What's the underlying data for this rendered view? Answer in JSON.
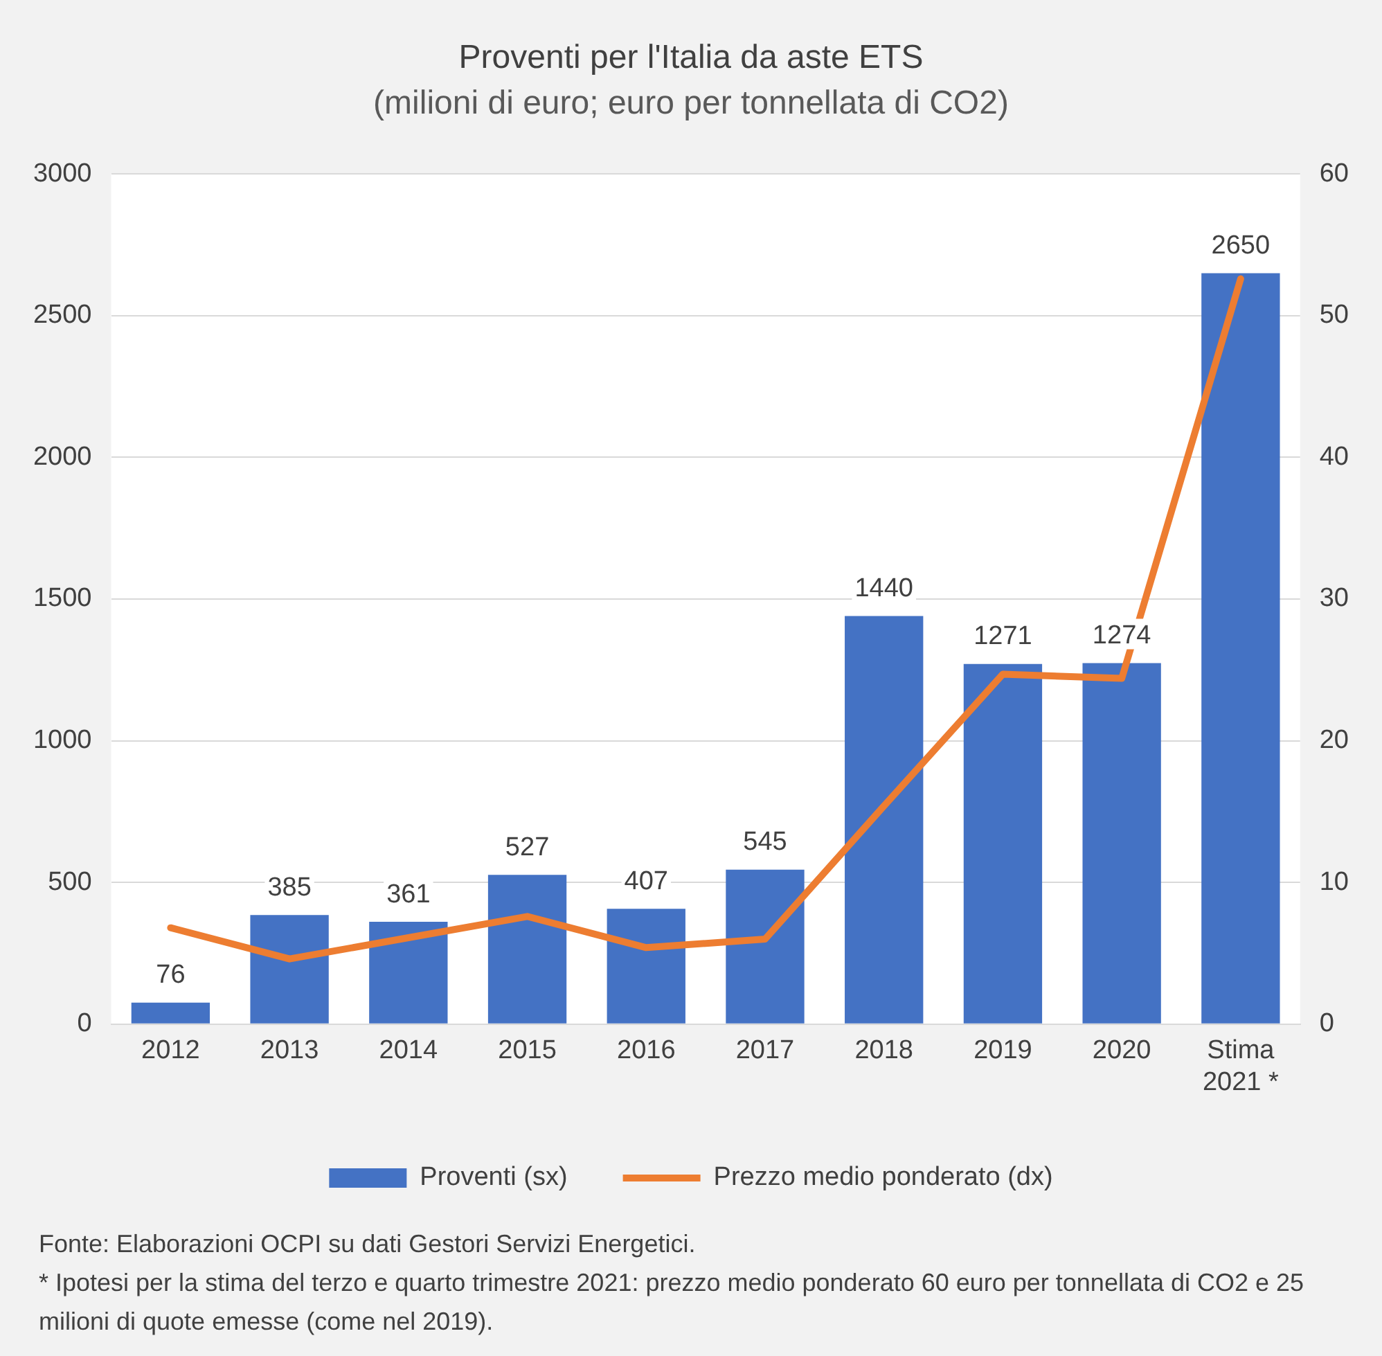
{
  "chart_data": {
    "type": "bar",
    "title": "Proventi per l'Italia da aste ETS",
    "subtitle": "(milioni di euro; euro per tonnellata di CO2)",
    "categories": [
      "2012",
      "2013",
      "2014",
      "2015",
      "2016",
      "2017",
      "2018",
      "2019",
      "2020",
      "Stima 2021 *"
    ],
    "series": [
      {
        "name": "Proventi (sx)",
        "color": "#4472c4",
        "values": [
          76,
          385,
          361,
          527,
          407,
          545,
          1440,
          1271,
          1274,
          2650
        ],
        "value_labels": [
          "76",
          "385",
          "361",
          "527",
          "407",
          "545",
          "1440",
          "1271",
          "1274",
          "2650"
        ]
      },
      {
        "name": "Prezzo medio ponderato (dx)",
        "type": "line",
        "axis": "y2",
        "color": "#ed7d31",
        "values": [
          6.8,
          4.6,
          6.1,
          7.6,
          5.4,
          6.0,
          15.4,
          24.7,
          24.4,
          52.6
        ]
      }
    ],
    "ylim": [
      0,
      3000
    ],
    "yticks": [
      0,
      500,
      1000,
      1500,
      2000,
      2500,
      3000
    ],
    "y2lim": [
      0,
      60
    ],
    "y2ticks": [
      0,
      10,
      20,
      30,
      40,
      50,
      60
    ],
    "grid": "y",
    "legend": "bottom",
    "marker": "none",
    "line_style": "solid",
    "annotations": [
      "Fonte: Elaborazioni OCPI su dati  Gestori Servizi Energetici.",
      "* Ipotesi per la stima del terzo e quarto trimestre 2021: prezzo medio ponderato 60 euro per tonnellata di CO2 e 25 milioni di quote emesse (come nel 2019)."
    ]
  }
}
